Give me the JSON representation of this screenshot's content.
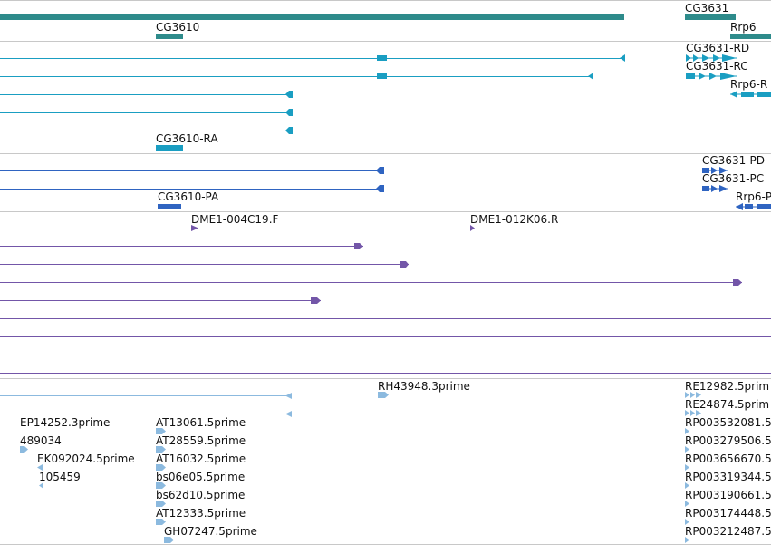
{
  "colors": {
    "gene": "#2e8b8b",
    "mrna": "#1a9ec2",
    "protein": "#2f64c1",
    "est": "#7356a8",
    "cdna": "#8cbadf",
    "separator": "#c8c8c8"
  },
  "gene_track": {
    "labels": [
      "CG3631",
      "CG3610",
      "Rrp6"
    ]
  },
  "mrna_track": {
    "labels": [
      "CG3631-RD",
      "CG3631-RC",
      "Rrp6-R",
      "CG3610-RA"
    ]
  },
  "protein_track": {
    "labels": [
      "CG3631-PD",
      "CG3631-PC",
      "Rrp6-P",
      "CG3610-PA"
    ]
  },
  "est_track": {
    "labels": [
      "DME1-004C19.F",
      "DME1-012K06.R"
    ]
  },
  "cdna_track": {
    "labels": [
      "RH43948.3prime",
      "RE12982.5prim",
      "RE24874.5prim",
      "EP14252.3prime",
      "AT13061.5prime",
      "RP003532081.5",
      "489034",
      "AT28559.5prime",
      "RP003279506.5",
      "EK092024.5prime",
      "AT16032.5prime",
      "RP003656670.5",
      "105459",
      "bs06e05.5prime",
      "RP003319344.5",
      "bs62d10.5prime",
      "RP003190661.5",
      "AT12333.5prime",
      "RP003174448.5",
      "GH07247.5prime",
      "RP003212487.5"
    ]
  }
}
